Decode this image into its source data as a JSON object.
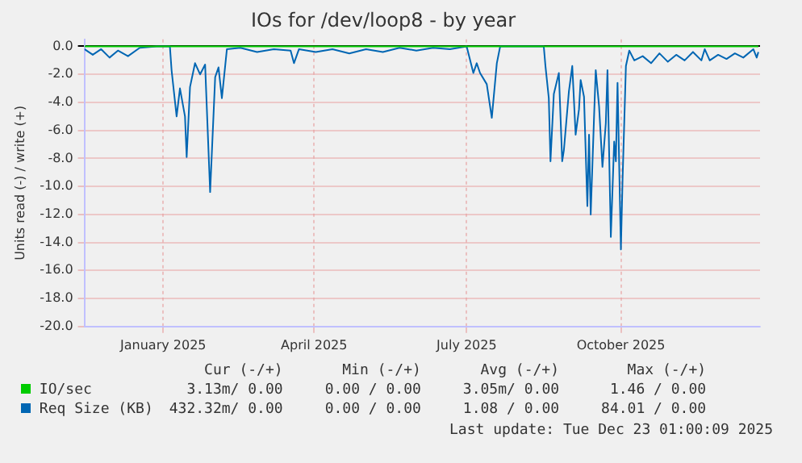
{
  "chart_data": {
    "type": "line",
    "title": "IOs for /dev/loop8 - by year",
    "ylabel": "Units read (-) / write (+)",
    "xlim": [
      "2024-11-15",
      "2025-12-23"
    ],
    "xticks": [
      {
        "value": "2025-01-01",
        "label": "January 2025"
      },
      {
        "value": "2025-04-01",
        "label": "April 2025"
      },
      {
        "value": "2025-07-01",
        "label": "July 2025"
      },
      {
        "value": "2025-10-01",
        "label": "October 2025"
      }
    ],
    "ylim": [
      -20,
      0.5
    ],
    "yticks": [
      {
        "value": 0,
        "label": "0.0"
      },
      {
        "value": -2,
        "label": "-2.0"
      },
      {
        "value": -4,
        "label": "-4.0"
      },
      {
        "value": -6,
        "label": "-6.0"
      },
      {
        "value": -8,
        "label": "-8.0"
      },
      {
        "value": -10,
        "label": "-10.0"
      },
      {
        "value": -12,
        "label": "-12.0"
      },
      {
        "value": -14,
        "label": "-14.0"
      },
      {
        "value": -16,
        "label": "-16.0"
      },
      {
        "value": -18,
        "label": "-18.0"
      },
      {
        "value": -20,
        "label": "-20.0"
      }
    ],
    "grid": true,
    "legend": "bottom",
    "marker": "none",
    "line_style": "solid",
    "series": [
      {
        "name": "IO/sec",
        "color": "#00cc00",
        "x": [
          "2024-11-15",
          "2025-12-22"
        ],
        "values": [
          0,
          0
        ]
      },
      {
        "name": "Req Size (KB)",
        "color": "#0066b3",
        "x": [
          "2024-11-15",
          "2024-11-20",
          "2024-11-25",
          "2024-11-30",
          "2024-12-05",
          "2024-12-11",
          "2024-12-18",
          "2024-12-28",
          "2025-01-05",
          "2025-01-06",
          "2025-01-09",
          "2025-01-11",
          "2025-01-14",
          "2025-01-15",
          "2025-01-17",
          "2025-01-20",
          "2025-01-23",
          "2025-01-26",
          "2025-01-29",
          "2025-02-01",
          "2025-02-03",
          "2025-02-05",
          "2025-02-08",
          "2025-02-16",
          "2025-02-26",
          "2025-03-08",
          "2025-03-18",
          "2025-03-20",
          "2025-03-23",
          "2025-04-02",
          "2025-04-12",
          "2025-04-22",
          "2025-05-02",
          "2025-05-12",
          "2025-05-22",
          "2025-06-01",
          "2025-06-11",
          "2025-06-21",
          "2025-07-01",
          "2025-07-05",
          "2025-07-07",
          "2025-07-09",
          "2025-07-13",
          "2025-07-16",
          "2025-07-19",
          "2025-07-21",
          "2025-07-31",
          "2025-08-16",
          "2025-08-17",
          "2025-08-19",
          "2025-08-20",
          "2025-08-22",
          "2025-08-25",
          "2025-08-27",
          "2025-08-28",
          "2025-08-31",
          "2025-09-02",
          "2025-09-04",
          "2025-09-06",
          "2025-09-07",
          "2025-09-09",
          "2025-09-11",
          "2025-09-12",
          "2025-09-13",
          "2025-09-15",
          "2025-09-16",
          "2025-09-18",
          "2025-09-20",
          "2025-09-22",
          "2025-09-23",
          "2025-09-25",
          "2025-09-27",
          "2025-09-28",
          "2025-09-29",
          "2025-10-01",
          "2025-10-02",
          "2025-10-04",
          "2025-10-06",
          "2025-10-09",
          "2025-10-14",
          "2025-10-19",
          "2025-10-24",
          "2025-10-29",
          "2025-11-03",
          "2025-11-08",
          "2025-11-13",
          "2025-11-18",
          "2025-11-20",
          "2025-11-23",
          "2025-11-28",
          "2025-12-03",
          "2025-12-08",
          "2025-12-13",
          "2025-12-19",
          "2025-12-21",
          "2025-12-22"
        ],
        "values": [
          -0.2,
          -0.6,
          -0.2,
          -0.8,
          -0.3,
          -0.7,
          -0.1,
          0,
          0,
          -1.7,
          -5.0,
          -3.0,
          -5.0,
          -7.9,
          -2.9,
          -1.2,
          -2.0,
          -1.3,
          -10.4,
          -2.2,
          -1.5,
          -3.7,
          -0.2,
          -0.1,
          -0.4,
          -0.2,
          -0.3,
          -1.2,
          -0.2,
          -0.4,
          -0.2,
          -0.5,
          -0.2,
          -0.4,
          -0.1,
          -0.3,
          -0.1,
          -0.2,
          0,
          -1.9,
          -1.2,
          -1.9,
          -2.7,
          -5.1,
          -1.2,
          0,
          0,
          0,
          -1.4,
          -3.7,
          -8.2,
          -3.4,
          -1.9,
          -8.2,
          -7.4,
          -3.2,
          -1.4,
          -6.3,
          -4.5,
          -2.4,
          -3.6,
          -11.4,
          -6.3,
          -12.0,
          -5.0,
          -1.7,
          -4.3,
          -8.6,
          -5.5,
          -1.7,
          -13.6,
          -6.8,
          -8.2,
          -2.6,
          -14.5,
          -9.5,
          -1.4,
          -0.3,
          -1.0,
          -0.7,
          -1.2,
          -0.5,
          -1.1,
          -0.6,
          -1.0,
          -0.4,
          -1.0,
          -0.2,
          -1.0,
          -0.6,
          -0.9,
          -0.5,
          -0.8,
          -0.2,
          -0.8,
          -0.4
        ]
      }
    ],
    "annotations": [
      "Cur (-/+)",
      "Min (-/+)",
      "Avg (-/+)",
      "Max (-/+)",
      "3.13m/ 0.00",
      "0.00 / 0.00",
      "3.05m/ 0.00",
      "1.46 / 0.00",
      "432.32m/ 0.00",
      "0.00 / 0.00",
      "1.08 / 0.00",
      "84.01 / 0.00",
      "Last update: Tue Dec 23 01:00:09 2025"
    ]
  }
}
